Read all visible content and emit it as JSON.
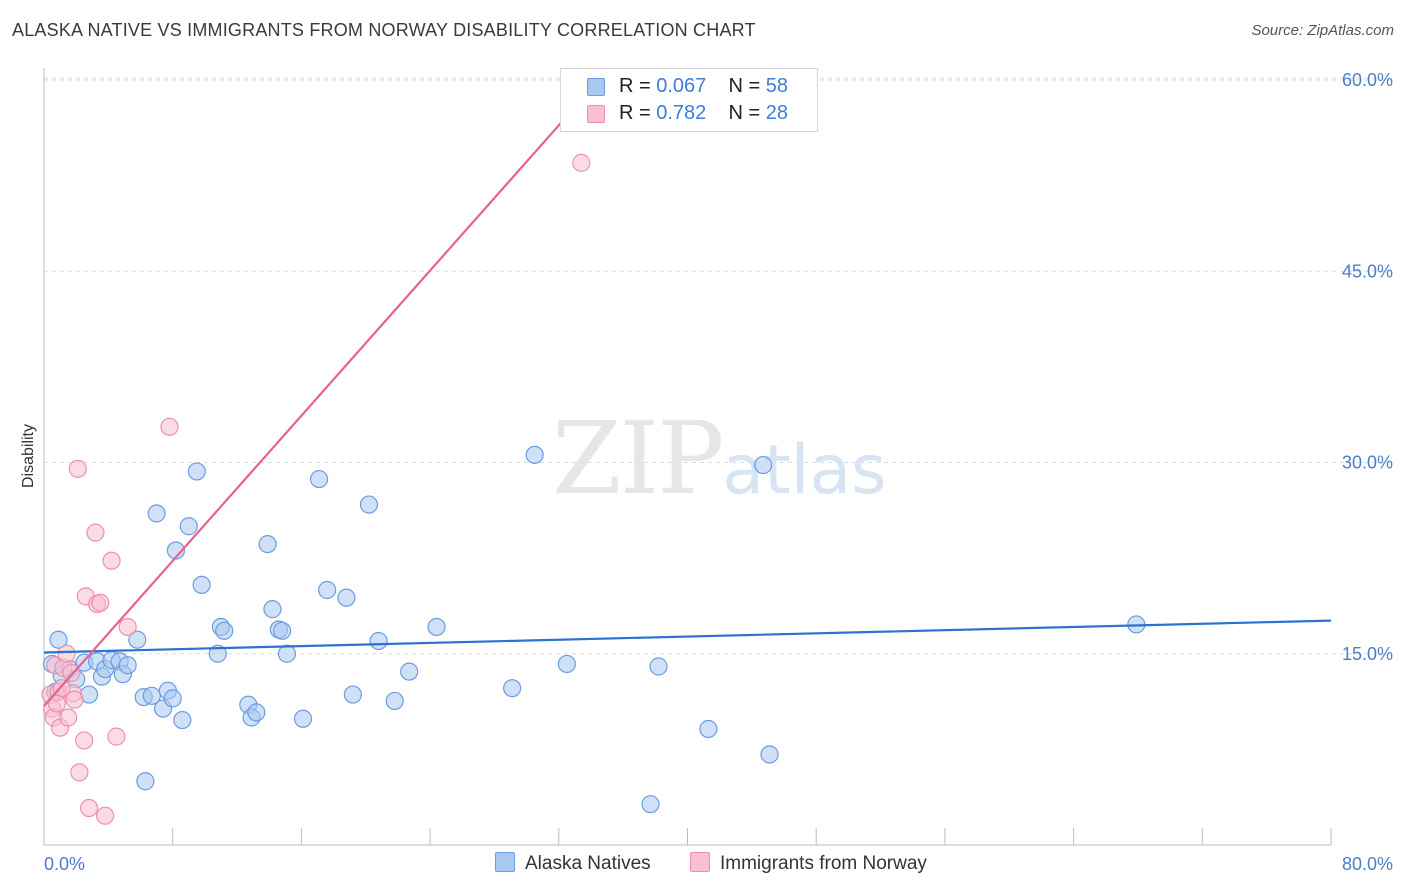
{
  "title": "ALASKA NATIVE VS IMMIGRANTS FROM NORWAY DISABILITY CORRELATION CHART",
  "source": "Source: ZipAtlas.com",
  "watermark": {
    "zip": "ZIP",
    "atlas": "atlas"
  },
  "legend": {
    "rows": [
      {
        "r_label": "R =",
        "r_value": "0.067",
        "n_label": "N =",
        "n_value": "58"
      },
      {
        "r_label": "R =",
        "r_value": "0.782",
        "n_label": "N =",
        "n_value": "28"
      }
    ]
  },
  "bottom_legend": {
    "series_a": "Alaska Natives",
    "series_b": "Immigrants from Norway"
  },
  "colors": {
    "blue_fill": "#a9c8f0",
    "blue_stroke": "#6a9ce0",
    "blue_line": "#2c72d0",
    "pink_fill": "#f7bfd0",
    "pink_stroke": "#ee8fab",
    "pink_line": "#e8628c",
    "grid": "#dcdcdc",
    "axis_label": "#4a7fc8"
  },
  "chart_data": {
    "type": "scatter",
    "title": "ALASKA NATIVE VS IMMIGRANTS FROM NORWAY DISABILITY CORRELATION CHART",
    "xlabel": "",
    "ylabel": "Disability",
    "xlim": [
      0,
      80
    ],
    "ylim": [
      0,
      60
    ],
    "x_tick_labels": [
      "0.0%",
      "80.0%"
    ],
    "y_ticks": [
      15,
      30,
      45,
      60
    ],
    "y_tick_labels": [
      "15.0%",
      "30.0%",
      "45.0%",
      "60.0%"
    ],
    "series": [
      {
        "name": "Alaska Natives",
        "color": "#6a9ce0",
        "trend": {
          "x": [
            0,
            80
          ],
          "y": [
            15.1,
            17.6
          ]
        },
        "points": [
          [
            0.5,
            14.2
          ],
          [
            0.7,
            12.0
          ],
          [
            0.9,
            16.1
          ],
          [
            1.1,
            13.3
          ],
          [
            1.6,
            13.8
          ],
          [
            2.0,
            13.0
          ],
          [
            2.5,
            14.3
          ],
          [
            2.8,
            11.8
          ],
          [
            3.3,
            14.4
          ],
          [
            3.6,
            13.2
          ],
          [
            3.8,
            13.8
          ],
          [
            4.2,
            14.5
          ],
          [
            4.7,
            14.4
          ],
          [
            4.9,
            13.4
          ],
          [
            5.2,
            14.1
          ],
          [
            5.8,
            16.1
          ],
          [
            6.3,
            5.0
          ],
          [
            6.2,
            11.6
          ],
          [
            6.7,
            11.7
          ],
          [
            7.0,
            26.0
          ],
          [
            7.4,
            10.7
          ],
          [
            7.7,
            12.1
          ],
          [
            8.0,
            11.5
          ],
          [
            8.2,
            23.1
          ],
          [
            8.6,
            9.8
          ],
          [
            9.0,
            25.0
          ],
          [
            9.5,
            29.3
          ],
          [
            9.8,
            20.4
          ],
          [
            10.8,
            15.0
          ],
          [
            11.0,
            17.1
          ],
          [
            11.2,
            16.8
          ],
          [
            12.7,
            11.0
          ],
          [
            12.9,
            10.0
          ],
          [
            13.2,
            10.4
          ],
          [
            13.9,
            23.6
          ],
          [
            14.2,
            18.5
          ],
          [
            14.6,
            16.9
          ],
          [
            14.8,
            16.8
          ],
          [
            15.1,
            15.0
          ],
          [
            16.1,
            9.9
          ],
          [
            17.1,
            28.7
          ],
          [
            17.6,
            20.0
          ],
          [
            18.8,
            19.4
          ],
          [
            19.2,
            11.8
          ],
          [
            20.2,
            26.7
          ],
          [
            20.8,
            16.0
          ],
          [
            21.8,
            11.3
          ],
          [
            22.7,
            13.6
          ],
          [
            24.4,
            17.1
          ],
          [
            29.1,
            12.3
          ],
          [
            30.5,
            30.6
          ],
          [
            32.5,
            14.2
          ],
          [
            37.7,
            3.2
          ],
          [
            38.2,
            14.0
          ],
          [
            41.3,
            9.1
          ],
          [
            44.7,
            29.8
          ],
          [
            45.1,
            7.1
          ],
          [
            67.9,
            17.3
          ]
        ]
      },
      {
        "name": "Immigrants from Norway",
        "color": "#ee8fab",
        "trend": {
          "x": [
            0,
            34.5
          ],
          "y": [
            10.9,
            60
          ]
        },
        "points": [
          [
            0.4,
            11.8
          ],
          [
            0.5,
            10.7
          ],
          [
            0.6,
            10.0
          ],
          [
            0.7,
            14.1
          ],
          [
            0.9,
            12.0
          ],
          [
            1.0,
            9.2
          ],
          [
            1.2,
            13.9
          ],
          [
            1.4,
            15.0
          ],
          [
            1.5,
            10.0
          ],
          [
            1.7,
            13.5
          ],
          [
            1.8,
            11.9
          ],
          [
            1.9,
            11.4
          ],
          [
            2.1,
            29.5
          ],
          [
            2.2,
            5.7
          ],
          [
            2.5,
            8.2
          ],
          [
            2.6,
            19.5
          ],
          [
            2.8,
            2.9
          ],
          [
            3.2,
            24.5
          ],
          [
            3.3,
            18.9
          ],
          [
            3.5,
            19.0
          ],
          [
            3.8,
            2.3
          ],
          [
            4.2,
            22.3
          ],
          [
            4.5,
            8.5
          ],
          [
            5.2,
            17.1
          ],
          [
            7.8,
            32.8
          ],
          [
            33.4,
            53.5
          ],
          [
            1.1,
            12.3
          ],
          [
            0.8,
            11.1
          ]
        ]
      }
    ]
  }
}
